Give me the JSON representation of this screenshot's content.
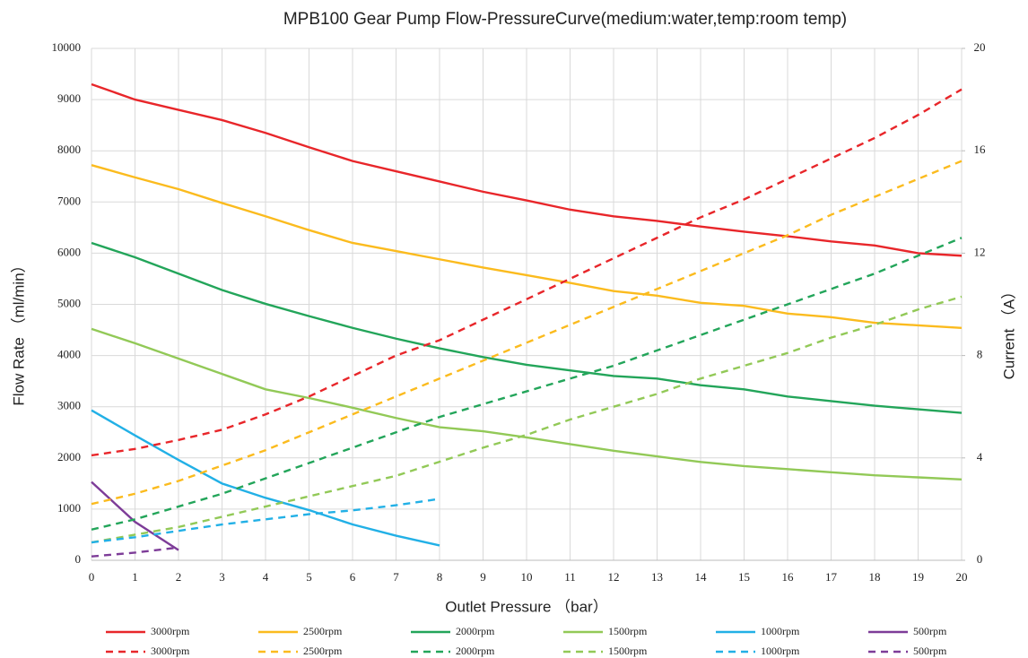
{
  "chart_data": {
    "type": "line",
    "title": "MPB100 Gear Pump Flow-PressureCurve(medium:water,temp:room temp)",
    "x_label": "Outlet Pressure （bar）",
    "y_label": "Flow Rate （ml/min）",
    "y2_label": "Current （A）",
    "x": [
      0,
      1,
      2,
      3,
      4,
      5,
      6,
      7,
      8,
      9,
      10,
      11,
      12,
      13,
      14,
      15,
      16,
      17,
      18,
      19,
      20
    ],
    "xlim": [
      0,
      20
    ],
    "xticks": [
      0,
      1,
      2,
      3,
      4,
      5,
      6,
      7,
      8,
      9,
      10,
      11,
      12,
      13,
      14,
      15,
      16,
      17,
      18,
      19,
      20
    ],
    "ylim": [
      0,
      10000
    ],
    "yticks": [
      0,
      1000,
      2000,
      3000,
      4000,
      5000,
      6000,
      7000,
      8000,
      9000,
      10000
    ],
    "y2lim": [
      0,
      20
    ],
    "y2ticks": [
      0,
      4,
      8,
      12,
      16,
      20
    ],
    "grid": true,
    "series": [
      {
        "name": "3000rpm",
        "color": "#e8262a",
        "dash": false,
        "values": [
          9300,
          9000,
          8800,
          8600,
          8350,
          8070,
          7800,
          7600,
          7400,
          7200,
          7030,
          6850,
          6720,
          6630,
          6520,
          6420,
          6330,
          6230,
          6150,
          6000,
          5950
        ]
      },
      {
        "name": "2500rpm",
        "color": "#fbbb1e",
        "dash": false,
        "values": [
          7720,
          7480,
          7250,
          6980,
          6720,
          6450,
          6200,
          6040,
          5880,
          5720,
          5570,
          5420,
          5260,
          5170,
          5030,
          4970,
          4820,
          4750,
          4640,
          4590,
          4540
        ]
      },
      {
        "name": "2000rpm",
        "color": "#23a55a",
        "dash": false,
        "values": [
          6200,
          5920,
          5600,
          5280,
          5010,
          4770,
          4540,
          4330,
          4140,
          3970,
          3820,
          3710,
          3600,
          3550,
          3420,
          3340,
          3200,
          3110,
          3020,
          2950,
          2880
        ]
      },
      {
        "name": "1500rpm",
        "color": "#92c957",
        "dash": false,
        "values": [
          4520,
          4240,
          3940,
          3640,
          3340,
          3170,
          2980,
          2780,
          2600,
          2520,
          2400,
          2270,
          2140,
          2030,
          1920,
          1840,
          1780,
          1720,
          1660,
          1620,
          1580
        ]
      },
      {
        "name": "1000rpm",
        "color": "#22b0e6",
        "dash": false,
        "values": [
          2930,
          2440,
          1960,
          1500,
          1220,
          980,
          700,
          480,
          290,
          null,
          null,
          null,
          null,
          null,
          null,
          null,
          null,
          null,
          null,
          null,
          null
        ]
      },
      {
        "name": "500rpm",
        "color": "#7d3c98",
        "dash": false,
        "values": [
          1530,
          750,
          200,
          null,
          null,
          null,
          null,
          null,
          null,
          null,
          null,
          null,
          null,
          null,
          null,
          null,
          null,
          null,
          null,
          null,
          null
        ]
      },
      {
        "name": "3000rpm",
        "color": "#e8262a",
        "dash": true,
        "axis": "y2",
        "values": [
          4.1,
          4.35,
          4.7,
          5.1,
          5.7,
          6.4,
          7.2,
          8.0,
          8.6,
          9.4,
          10.2,
          11.0,
          11.8,
          12.6,
          13.4,
          14.1,
          14.9,
          15.7,
          16.5,
          17.4,
          18.4
        ]
      },
      {
        "name": "2500rpm",
        "color": "#fbbb1e",
        "dash": true,
        "axis": "y2",
        "values": [
          2.2,
          2.6,
          3.1,
          3.7,
          4.3,
          5.0,
          5.7,
          6.4,
          7.1,
          7.8,
          8.5,
          9.2,
          9.9,
          10.6,
          11.3,
          12.0,
          12.7,
          13.5,
          14.2,
          14.9,
          15.6
        ]
      },
      {
        "name": "2000rpm",
        "color": "#23a55a",
        "dash": true,
        "axis": "y2",
        "values": [
          1.2,
          1.6,
          2.1,
          2.6,
          3.2,
          3.8,
          4.4,
          5.0,
          5.6,
          6.1,
          6.6,
          7.1,
          7.6,
          8.2,
          8.8,
          9.4,
          10.0,
          10.6,
          11.2,
          11.9,
          12.6
        ]
      },
      {
        "name": "1500rpm",
        "color": "#92c957",
        "dash": true,
        "axis": "y2",
        "values": [
          0.7,
          1.0,
          1.3,
          1.7,
          2.1,
          2.5,
          2.9,
          3.3,
          3.85,
          4.4,
          4.9,
          5.5,
          6.0,
          6.5,
          7.1,
          7.6,
          8.1,
          8.7,
          9.2,
          9.8,
          10.3
        ]
      },
      {
        "name": "1000rpm",
        "color": "#22b0e6",
        "dash": true,
        "axis": "y2",
        "values": [
          0.7,
          0.9,
          1.15,
          1.4,
          1.6,
          1.8,
          1.95,
          2.15,
          2.4,
          null,
          null,
          null,
          null,
          null,
          null,
          null,
          null,
          null,
          null,
          null,
          null
        ]
      },
      {
        "name": "500rpm",
        "color": "#7d3c98",
        "dash": true,
        "axis": "y2",
        "values": [
          0.15,
          0.3,
          0.5,
          null,
          null,
          null,
          null,
          null,
          null,
          null,
          null,
          null,
          null,
          null,
          null,
          null,
          null,
          null,
          null,
          null,
          null
        ]
      }
    ]
  }
}
